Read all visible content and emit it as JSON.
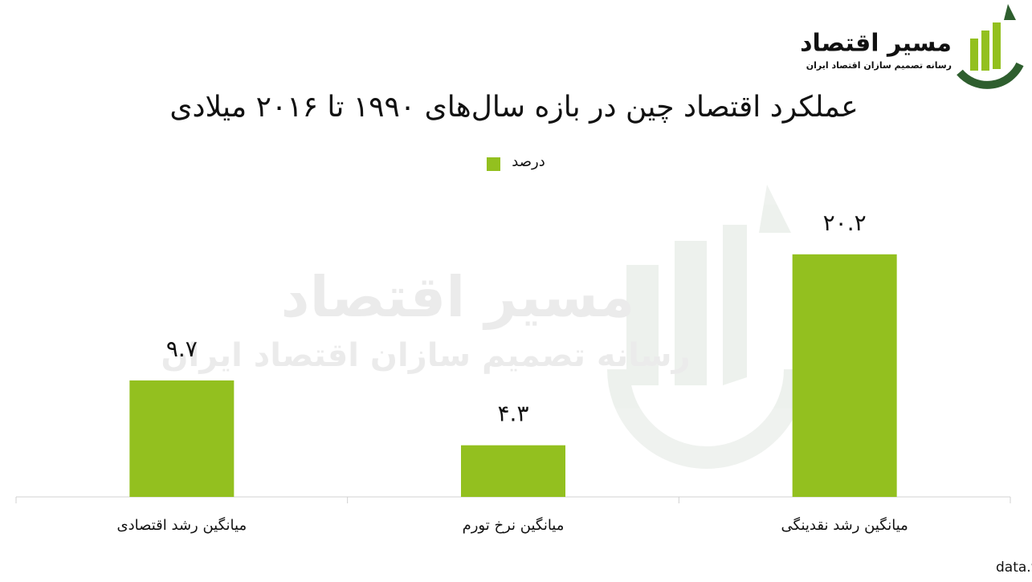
{
  "chart_data": {
    "type": "bar",
    "title": "عملکرد اقتصاد چین در بازه سال‌های ۱۹۹۰ تا ۲۰۱۶ میلادی",
    "legend": "درصد",
    "categories": [
      "میانگین رشد اقتصادی",
      "میانگین نرخ تورم",
      "میانگین رشد نقدینگی"
    ],
    "values": [
      9.7,
      4.3,
      20.2
    ],
    "value_labels": [
      "۹.۷",
      "۴.۳",
      "۲۰.۲"
    ],
    "color": "#93c01f",
    "ylim": [
      0,
      25
    ],
    "source": "منبع: سایت بانک جهانی؛ data.worldbank.org"
  },
  "logo": {
    "name": "مسیر اقتصاد",
    "tagline": "رسانه تصمیم سازان اقتصاد ایران"
  }
}
